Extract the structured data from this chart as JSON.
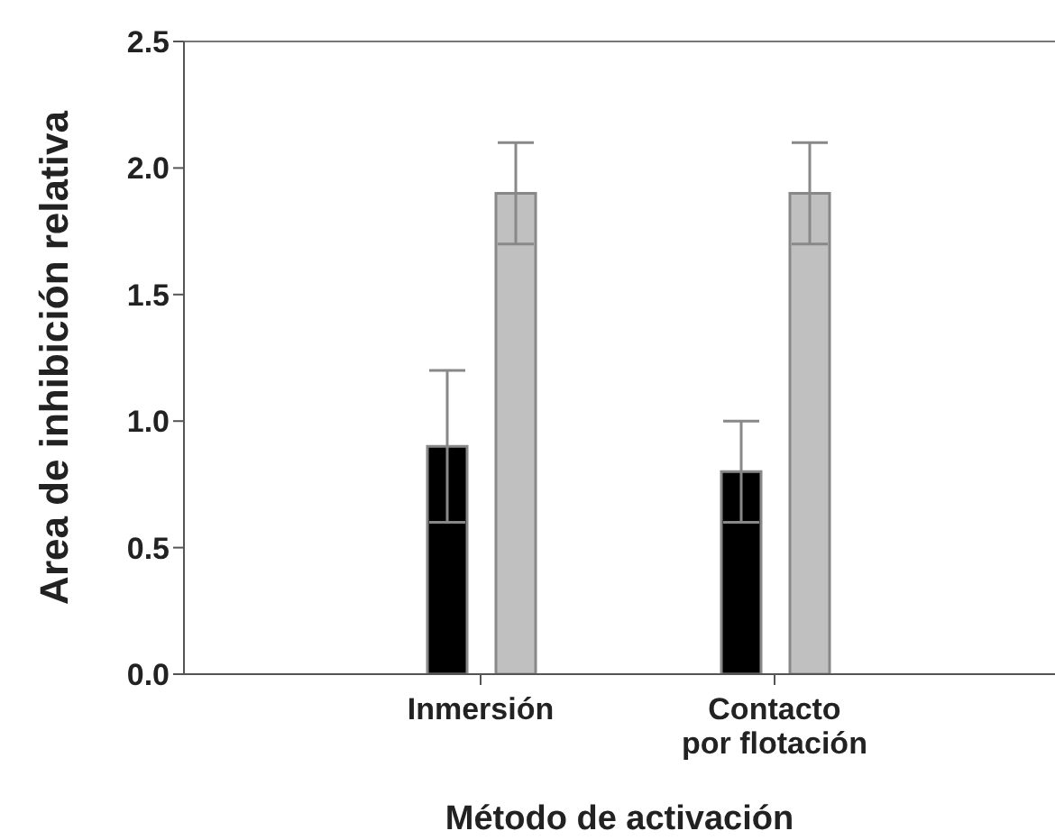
{
  "chart_data": {
    "type": "bar",
    "xlabel": "Método de activación",
    "ylabel": "Area de inhibición relativa",
    "categories": [
      "Inmersión",
      "Contacto por flotación"
    ],
    "series": [
      {
        "color": "#000000",
        "values": [
          0.9,
          0.8
        ],
        "errors": [
          0.3,
          0.2
        ]
      },
      {
        "color": "#c0c0c0",
        "values": [
          1.9,
          1.9
        ],
        "errors": [
          0.2,
          0.2
        ]
      }
    ],
    "ylim": [
      0,
      2.5
    ],
    "yticks": [
      {
        "value": 0,
        "label": "0.0"
      },
      0.5,
      {
        "value": 1,
        "label": "1.0"
      },
      1.5,
      {
        "value": 2,
        "label": "2.0"
      },
      2.5
    ],
    "grid": false,
    "legend": false
  }
}
